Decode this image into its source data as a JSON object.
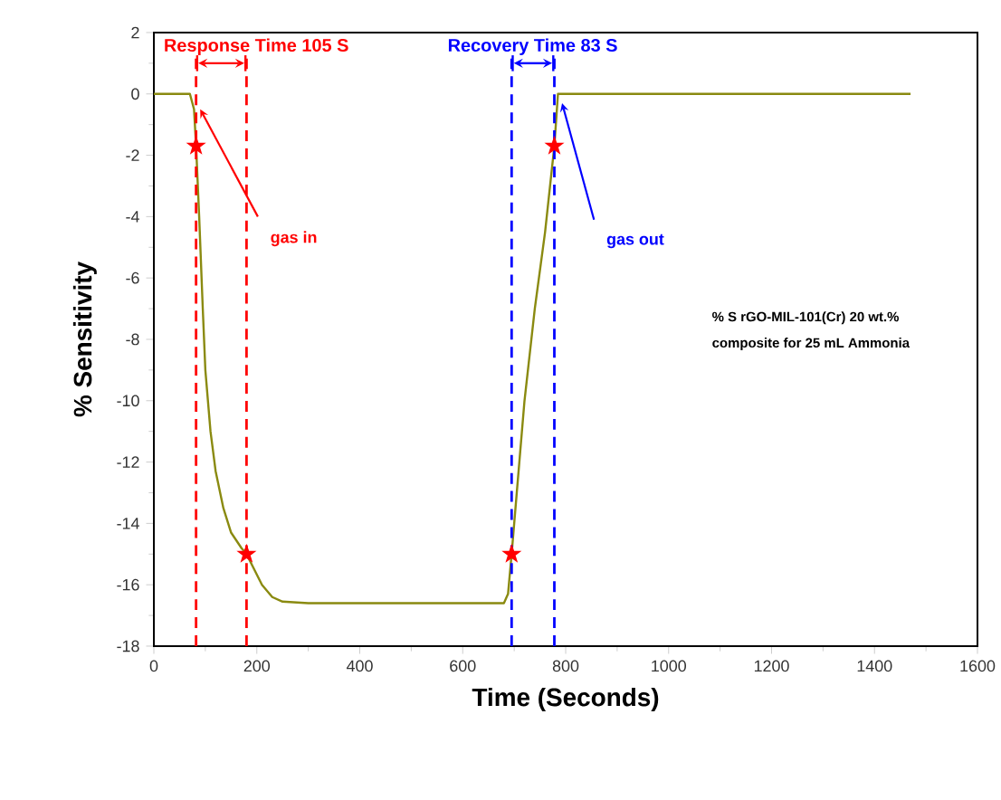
{
  "chart_data": {
    "type": "line",
    "xlabel": "Time (Seconds)",
    "ylabel": "% Sensitivity",
    "xlim": [
      0,
      1600
    ],
    "ylim": [
      -18,
      2
    ],
    "xticks": [
      0,
      200,
      400,
      600,
      800,
      1000,
      1200,
      1400,
      1600
    ],
    "yticks": [
      -18,
      -16,
      -14,
      -12,
      -10,
      -8,
      -6,
      -4,
      -2,
      0,
      2
    ],
    "grid": false,
    "series": [
      {
        "type": "line",
        "color": "#8a8a10",
        "marker": "none",
        "x": [
          0,
          70,
          78,
          82,
          88,
          95,
          100,
          110,
          120,
          135,
          150,
          170,
          180,
          195,
          210,
          230,
          250,
          300,
          400,
          500,
          600,
          680,
          688,
          695,
          705,
          720,
          740,
          760,
          778,
          785,
          1470
        ],
        "values": [
          0,
          0,
          -0.5,
          -1.7,
          -4,
          -7,
          -9,
          -11,
          -12.3,
          -13.5,
          -14.3,
          -14.8,
          -15,
          -15.5,
          -16,
          -16.4,
          -16.55,
          -16.6,
          -16.6,
          -16.6,
          -16.6,
          -16.6,
          -16.3,
          -15,
          -13,
          -10,
          -7,
          -4.5,
          -1.7,
          0,
          0
        ]
      },
      {
        "type": "scatter",
        "color": "#ff0000",
        "marker": "star",
        "x": [
          82,
          180,
          695,
          778
        ],
        "values": [
          -1.7,
          -15,
          -15,
          -1.7
        ]
      }
    ],
    "ref_lines": [
      {
        "axis": "x",
        "value": 82,
        "color": "#ff0000",
        "line_style": "dashed",
        "label": "Response Time 105 S"
      },
      {
        "axis": "x",
        "value": 180,
        "color": "#ff0000",
        "line_style": "dashed"
      },
      {
        "axis": "x",
        "value": 695,
        "color": "#0000ff",
        "line_style": "dashed",
        "label": "Recovery Time 83 S"
      },
      {
        "axis": "x",
        "value": 778,
        "color": "#0000ff",
        "line_style": "dashed"
      }
    ],
    "annotations": [
      {
        "text": "gas in",
        "x": 82,
        "y": -0.3
      },
      {
        "text": "gas out",
        "x": 785,
        "y": -0.1
      },
      "% S rGO-MIL-101(Cr) 20 wt.%",
      "composite for 25 mL Ammonia"
    ]
  }
}
